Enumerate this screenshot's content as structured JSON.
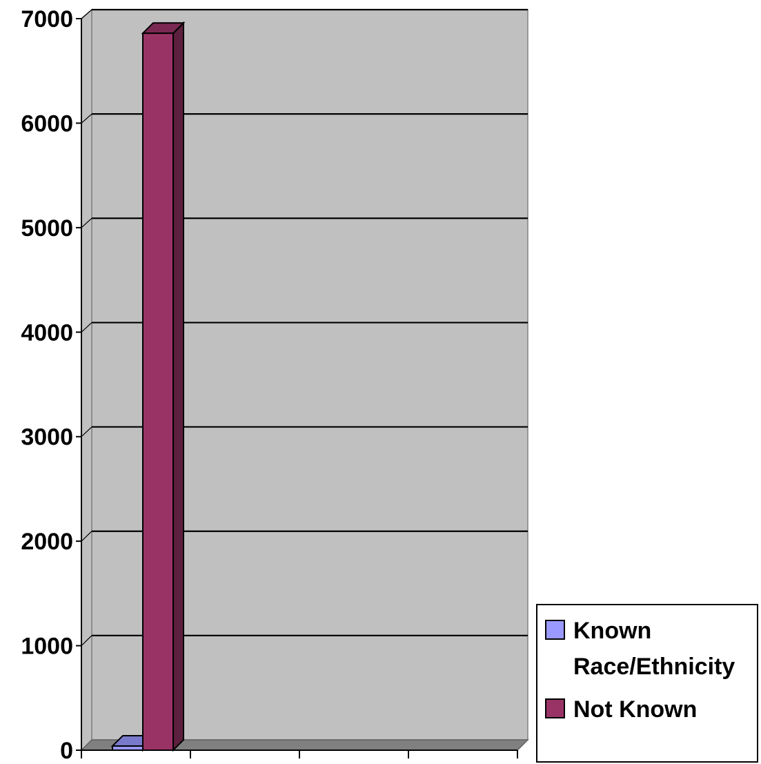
{
  "chart_data": {
    "type": "bar",
    "style": "3d-column",
    "categories": [
      ""
    ],
    "series": [
      {
        "name": "Known Race/Ethnicity",
        "values": [
          40
        ],
        "color": "#9999ff"
      },
      {
        "name": "Not Known",
        "values": [
          6860
        ],
        "color": "#993366"
      }
    ],
    "ylim": [
      0,
      7000
    ],
    "yticks": [
      "0",
      "1000",
      "2000",
      "3000",
      "4000",
      "5000",
      "6000",
      "7000"
    ],
    "xcategory_slots": 4,
    "grid": true,
    "legend_position": "right-bottom",
    "plot_background": "#c0c0c0",
    "floor_color": "#808080",
    "title": "",
    "xlabel": "",
    "ylabel": ""
  },
  "legend": {
    "items": [
      {
        "lines": [
          "Known",
          "Race/Ethnicity"
        ],
        "color": "#9999ff"
      },
      {
        "lines": [
          "Not Known"
        ],
        "color": "#993366"
      }
    ]
  }
}
